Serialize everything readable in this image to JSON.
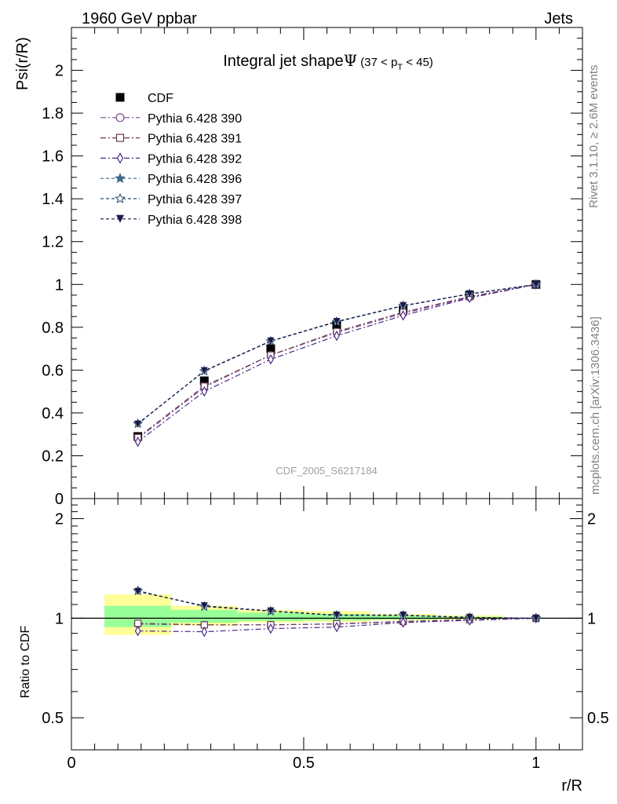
{
  "header": {
    "left": "1960 GeV ppbar",
    "right": "Jets"
  },
  "side_labels": {
    "rivet": "Rivet 3.1.10, ≥ 2.6M events",
    "mcplots": "mcplots.cern.ch [arXiv:1306.3436]"
  },
  "watermark": "CDF_2005_S6217184",
  "chart_data": [
    {
      "type": "line",
      "panel": "main",
      "title": {
        "text": "Integral jet shape",
        "symbol": "Ψ",
        "range_open": "(37 < p",
        "range_sub": "T",
        "range_close": " < 45)"
      },
      "ylabel": "Psi(r/R)",
      "xlabel": "",
      "xlim": [
        0,
        1.1
      ],
      "ylim": [
        0,
        2.2
      ],
      "yticks": [
        "0",
        "0.2",
        "0.4",
        "0.6",
        "0.8",
        "1",
        "1.2",
        "1.4",
        "1.6",
        "1.8",
        "2"
      ],
      "legend_position": "top-left",
      "x": [
        0.143,
        0.286,
        0.429,
        0.571,
        0.714,
        0.857,
        1.0
      ],
      "series": [
        {
          "name": "CDF",
          "color": "#000000",
          "marker": "filled-square",
          "line": "none",
          "values": [
            0.29,
            0.55,
            0.7,
            0.81,
            0.88,
            0.95,
            1.0
          ]
        },
        {
          "name": "Pythia 6.428 390",
          "color": "#7b4f8f",
          "marker": "open-circle",
          "line": "dash-dot",
          "values": [
            0.28,
            0.52,
            0.67,
            0.775,
            0.865,
            0.94,
            1.0
          ]
        },
        {
          "name": "Pythia 6.428 391",
          "color": "#6e3a55",
          "marker": "open-square",
          "line": "dash-dot",
          "values": [
            0.285,
            0.525,
            0.67,
            0.78,
            0.87,
            0.943,
            1.0
          ]
        },
        {
          "name": "Pythia 6.428 392",
          "color": "#4b2a8c",
          "marker": "open-diamond",
          "line": "dash-dot",
          "values": [
            0.265,
            0.5,
            0.65,
            0.76,
            0.855,
            0.937,
            1.0
          ]
        },
        {
          "name": "Pythia 6.428 396",
          "color": "#3d6a8a",
          "marker": "filled-star",
          "line": "dash",
          "values": [
            0.35,
            0.595,
            0.735,
            0.825,
            0.9,
            0.955,
            1.0
          ]
        },
        {
          "name": "Pythia 6.428 397",
          "color": "#2a4a6a",
          "marker": "open-star",
          "line": "dash",
          "values": [
            0.35,
            0.595,
            0.735,
            0.826,
            0.9,
            0.956,
            1.0
          ]
        },
        {
          "name": "Pythia 6.428 398",
          "color": "#1a1a4a",
          "marker": "filled-triangle-down",
          "line": "dash",
          "values": [
            0.348,
            0.597,
            0.736,
            0.827,
            0.901,
            0.956,
            1.0
          ]
        }
      ]
    },
    {
      "type": "line",
      "panel": "ratio",
      "ylabel": "Ratio to CDF",
      "xlabel": "r/R",
      "xlim": [
        0,
        1.1
      ],
      "ylim": [
        0.4,
        2.3
      ],
      "ytick_labels": [
        "0.5",
        "1",
        "2"
      ],
      "xticks": [
        "0",
        "0.5",
        "1"
      ],
      "x": [
        0.143,
        0.286,
        0.429,
        0.571,
        0.714,
        0.857,
        1.0
      ],
      "bins": [
        [
          0.071,
          0.214
        ],
        [
          0.214,
          0.357
        ],
        [
          0.357,
          0.5
        ],
        [
          0.5,
          0.643
        ],
        [
          0.643,
          0.786
        ],
        [
          0.786,
          0.929
        ],
        [
          0.929,
          1.071
        ]
      ],
      "band_green": [
        [
          0.94,
          1.09
        ],
        [
          0.97,
          1.06
        ],
        [
          0.98,
          1.04
        ],
        [
          0.985,
          1.03
        ],
        [
          0.99,
          1.02
        ],
        [
          0.995,
          1.01
        ],
        [
          1.0,
          1.0
        ]
      ],
      "band_yellow": [
        [
          0.89,
          1.18
        ],
        [
          0.95,
          1.09
        ],
        [
          0.97,
          1.06
        ],
        [
          0.975,
          1.05
        ],
        [
          0.985,
          1.03
        ],
        [
          0.99,
          1.02
        ],
        [
          1.0,
          1.0
        ]
      ],
      "series": [
        {
          "name": "Pythia 6.428 390",
          "values": [
            0.96,
            0.955,
            0.955,
            0.96,
            0.975,
            0.99,
            1.0
          ]
        },
        {
          "name": "Pythia 6.428 391",
          "values": [
            0.965,
            0.955,
            0.955,
            0.962,
            0.978,
            0.99,
            1.0
          ]
        },
        {
          "name": "Pythia 6.428 392",
          "values": [
            0.915,
            0.91,
            0.93,
            0.94,
            0.97,
            0.985,
            1.0
          ]
        },
        {
          "name": "Pythia 6.428 396",
          "values": [
            1.21,
            1.085,
            1.05,
            1.02,
            1.02,
            1.005,
            1.0
          ]
        },
        {
          "name": "Pythia 6.428 397",
          "values": [
            1.21,
            1.085,
            1.05,
            1.02,
            1.02,
            1.005,
            1.0
          ]
        },
        {
          "name": "Pythia 6.428 398",
          "values": [
            1.205,
            1.09,
            1.052,
            1.022,
            1.022,
            1.006,
            1.0
          ]
        }
      ]
    }
  ]
}
